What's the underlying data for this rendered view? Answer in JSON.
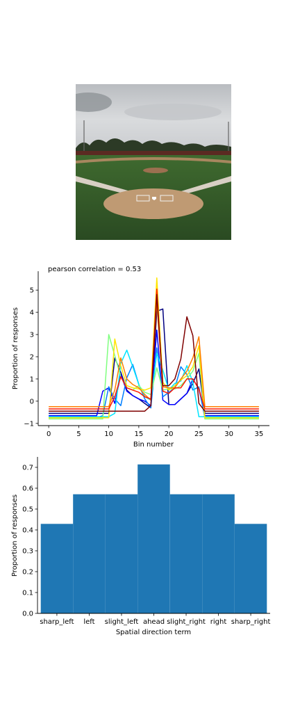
{
  "image": {
    "icon": "baseball-field-photo"
  },
  "chart_data": [
    {
      "type": "line",
      "title": "pearson correlation = 0.53",
      "xlabel": "Bin number",
      "ylabel": "Proportion of responses",
      "xlim": [
        -1.75,
        36.75
      ],
      "ylim": [
        -1.1,
        5.85
      ],
      "xticks": [
        0,
        5,
        10,
        15,
        20,
        25,
        30,
        35
      ],
      "yticks": [
        -1,
        0,
        1,
        2,
        3,
        4,
        5
      ],
      "grid": false,
      "legend": "none",
      "x": [
        0,
        1,
        2,
        3,
        4,
        5,
        6,
        7,
        8,
        9,
        10,
        11,
        12,
        13,
        14,
        15,
        16,
        17,
        18,
        19,
        20,
        21,
        22,
        23,
        24,
        25,
        26,
        27,
        28,
        29,
        30,
        31,
        32,
        33,
        34,
        35
      ],
      "series": [
        {
          "color": "#00007f",
          "values": [
            -0.55,
            -0.55,
            -0.55,
            -0.55,
            -0.55,
            -0.55,
            -0.55,
            -0.55,
            -0.55,
            -0.55,
            -0.55,
            1.95,
            1.3,
            0.5,
            0.25,
            0.1,
            -0.1,
            -0.3,
            4.05,
            4.15,
            -0.15,
            -0.15,
            0.1,
            0.35,
            0.8,
            1.45,
            -0.55,
            -0.55,
            -0.55,
            -0.55,
            -0.55,
            -0.55,
            -0.55,
            -0.55,
            -0.55,
            -0.55
          ]
        },
        {
          "color": "#0000ff",
          "values": [
            -0.65,
            -0.65,
            -0.65,
            -0.65,
            -0.65,
            -0.65,
            -0.65,
            -0.65,
            -0.65,
            0.45,
            0.6,
            -0.1,
            1.2,
            0.45,
            0.25,
            0.1,
            0.0,
            -0.2,
            3.2,
            0.05,
            -0.15,
            -0.15,
            0.1,
            0.35,
            1.0,
            0.55,
            -0.65,
            -0.65,
            -0.65,
            -0.65,
            -0.65,
            -0.65,
            -0.65,
            -0.65,
            -0.65,
            -0.65
          ]
        },
        {
          "color": "#007fff",
          "values": [
            -0.75,
            -0.75,
            -0.75,
            -0.75,
            -0.75,
            -0.75,
            -0.75,
            -0.75,
            -0.75,
            -0.65,
            0.65,
            0.1,
            -0.2,
            1.05,
            1.65,
            0.75,
            0.1,
            -0.3,
            2.4,
            0.2,
            0.4,
            0.6,
            1.55,
            1.2,
            0.5,
            0.65,
            -0.75,
            -0.75,
            -0.75,
            -0.75,
            -0.75,
            -0.75,
            -0.75,
            -0.75,
            -0.75,
            -0.75
          ]
        },
        {
          "color": "#00e5ff",
          "values": [
            -0.7,
            -0.7,
            -0.7,
            -0.7,
            -0.7,
            -0.7,
            -0.7,
            -0.7,
            -0.7,
            -0.7,
            -0.7,
            -0.55,
            1.7,
            2.3,
            1.55,
            0.75,
            0.2,
            0.05,
            2.15,
            1.4,
            0.5,
            0.8,
            0.9,
            1.6,
            0.85,
            -0.7,
            -0.7,
            -0.7,
            -0.7,
            -0.7,
            -0.7,
            -0.7,
            -0.7,
            -0.7,
            -0.7,
            -0.7
          ]
        },
        {
          "color": "#7fff7f",
          "values": [
            -0.8,
            -0.8,
            -0.8,
            -0.8,
            -0.8,
            -0.8,
            -0.8,
            -0.8,
            -0.8,
            -0.8,
            3.0,
            2.05,
            1.1,
            0.6,
            0.5,
            0.7,
            0.4,
            0.3,
            1.5,
            0.5,
            0.55,
            0.55,
            0.7,
            1.0,
            1.35,
            2.15,
            -0.8,
            -0.8,
            -0.8,
            -0.8,
            -0.8,
            -0.8,
            -0.8,
            -0.8,
            -0.8,
            -0.8
          ]
        },
        {
          "color": "#ffe500",
          "values": [
            -0.75,
            -0.75,
            -0.75,
            -0.75,
            -0.75,
            -0.75,
            -0.75,
            -0.75,
            -0.75,
            -0.75,
            -0.75,
            2.8,
            1.6,
            0.7,
            0.6,
            0.55,
            0.5,
            0.6,
            5.55,
            0.85,
            0.5,
            0.7,
            0.95,
            1.15,
            1.55,
            2.5,
            -0.75,
            -0.75,
            -0.75,
            -0.75,
            -0.75,
            -0.75,
            -0.75,
            -0.75,
            -0.75,
            -0.75
          ]
        },
        {
          "color": "#ff7f00",
          "values": [
            -0.25,
            -0.25,
            -0.25,
            -0.25,
            -0.25,
            -0.25,
            -0.25,
            -0.25,
            -0.25,
            -0.25,
            -0.25,
            0.5,
            1.95,
            1.0,
            0.75,
            0.6,
            0.3,
            0.05,
            4.45,
            0.65,
            0.6,
            0.6,
            1.0,
            1.35,
            1.95,
            2.9,
            -0.25,
            -0.25,
            -0.25,
            -0.25,
            -0.25,
            -0.25,
            -0.25,
            -0.25,
            -0.25,
            -0.25
          ]
        },
        {
          "color": "#ff1a00",
          "values": [
            -0.35,
            -0.35,
            -0.35,
            -0.35,
            -0.35,
            -0.35,
            -0.35,
            -0.35,
            -0.35,
            -0.35,
            -0.35,
            0.2,
            1.1,
            0.6,
            0.5,
            0.4,
            0.2,
            0.1,
            5.05,
            0.45,
            0.35,
            0.6,
            0.6,
            1.0,
            1.0,
            0.55,
            -0.35,
            -0.35,
            -0.35,
            -0.35,
            -0.35,
            -0.35,
            -0.35,
            -0.35,
            -0.35,
            -0.35
          ]
        },
        {
          "color": "#7f0000",
          "values": [
            -0.45,
            -0.45,
            -0.45,
            -0.45,
            -0.45,
            -0.45,
            -0.45,
            -0.45,
            -0.45,
            -0.45,
            -0.45,
            -0.45,
            -0.45,
            -0.45,
            -0.45,
            -0.45,
            -0.45,
            -0.2,
            4.8,
            0.7,
            0.7,
            1.0,
            1.9,
            3.8,
            2.95,
            -0.1,
            -0.45,
            -0.45,
            -0.45,
            -0.45,
            -0.45,
            -0.45,
            -0.45,
            -0.45,
            -0.45,
            -0.45
          ]
        }
      ]
    },
    {
      "type": "bar",
      "title": "",
      "xlabel": "Spatial direction term",
      "ylabel": "Proportion of responses",
      "categories": [
        "sharp_left",
        "left",
        "slight_left",
        "ahead",
        "slight_right",
        "right",
        "sharp_right"
      ],
      "bin_edges": [
        -0.5,
        0.5,
        1.5,
        2.5,
        3.5,
        4.5,
        5.5,
        6.5
      ],
      "values": [
        0.429,
        0.571,
        0.571,
        0.714,
        0.571,
        0.571,
        0.429
      ],
      "ylim": [
        0,
        0.75
      ],
      "yticks": [
        0.0,
        0.1,
        0.2,
        0.3,
        0.4,
        0.5,
        0.6,
        0.7
      ],
      "bar_color": "#1f77b4",
      "grid": false,
      "legend": "none"
    }
  ]
}
